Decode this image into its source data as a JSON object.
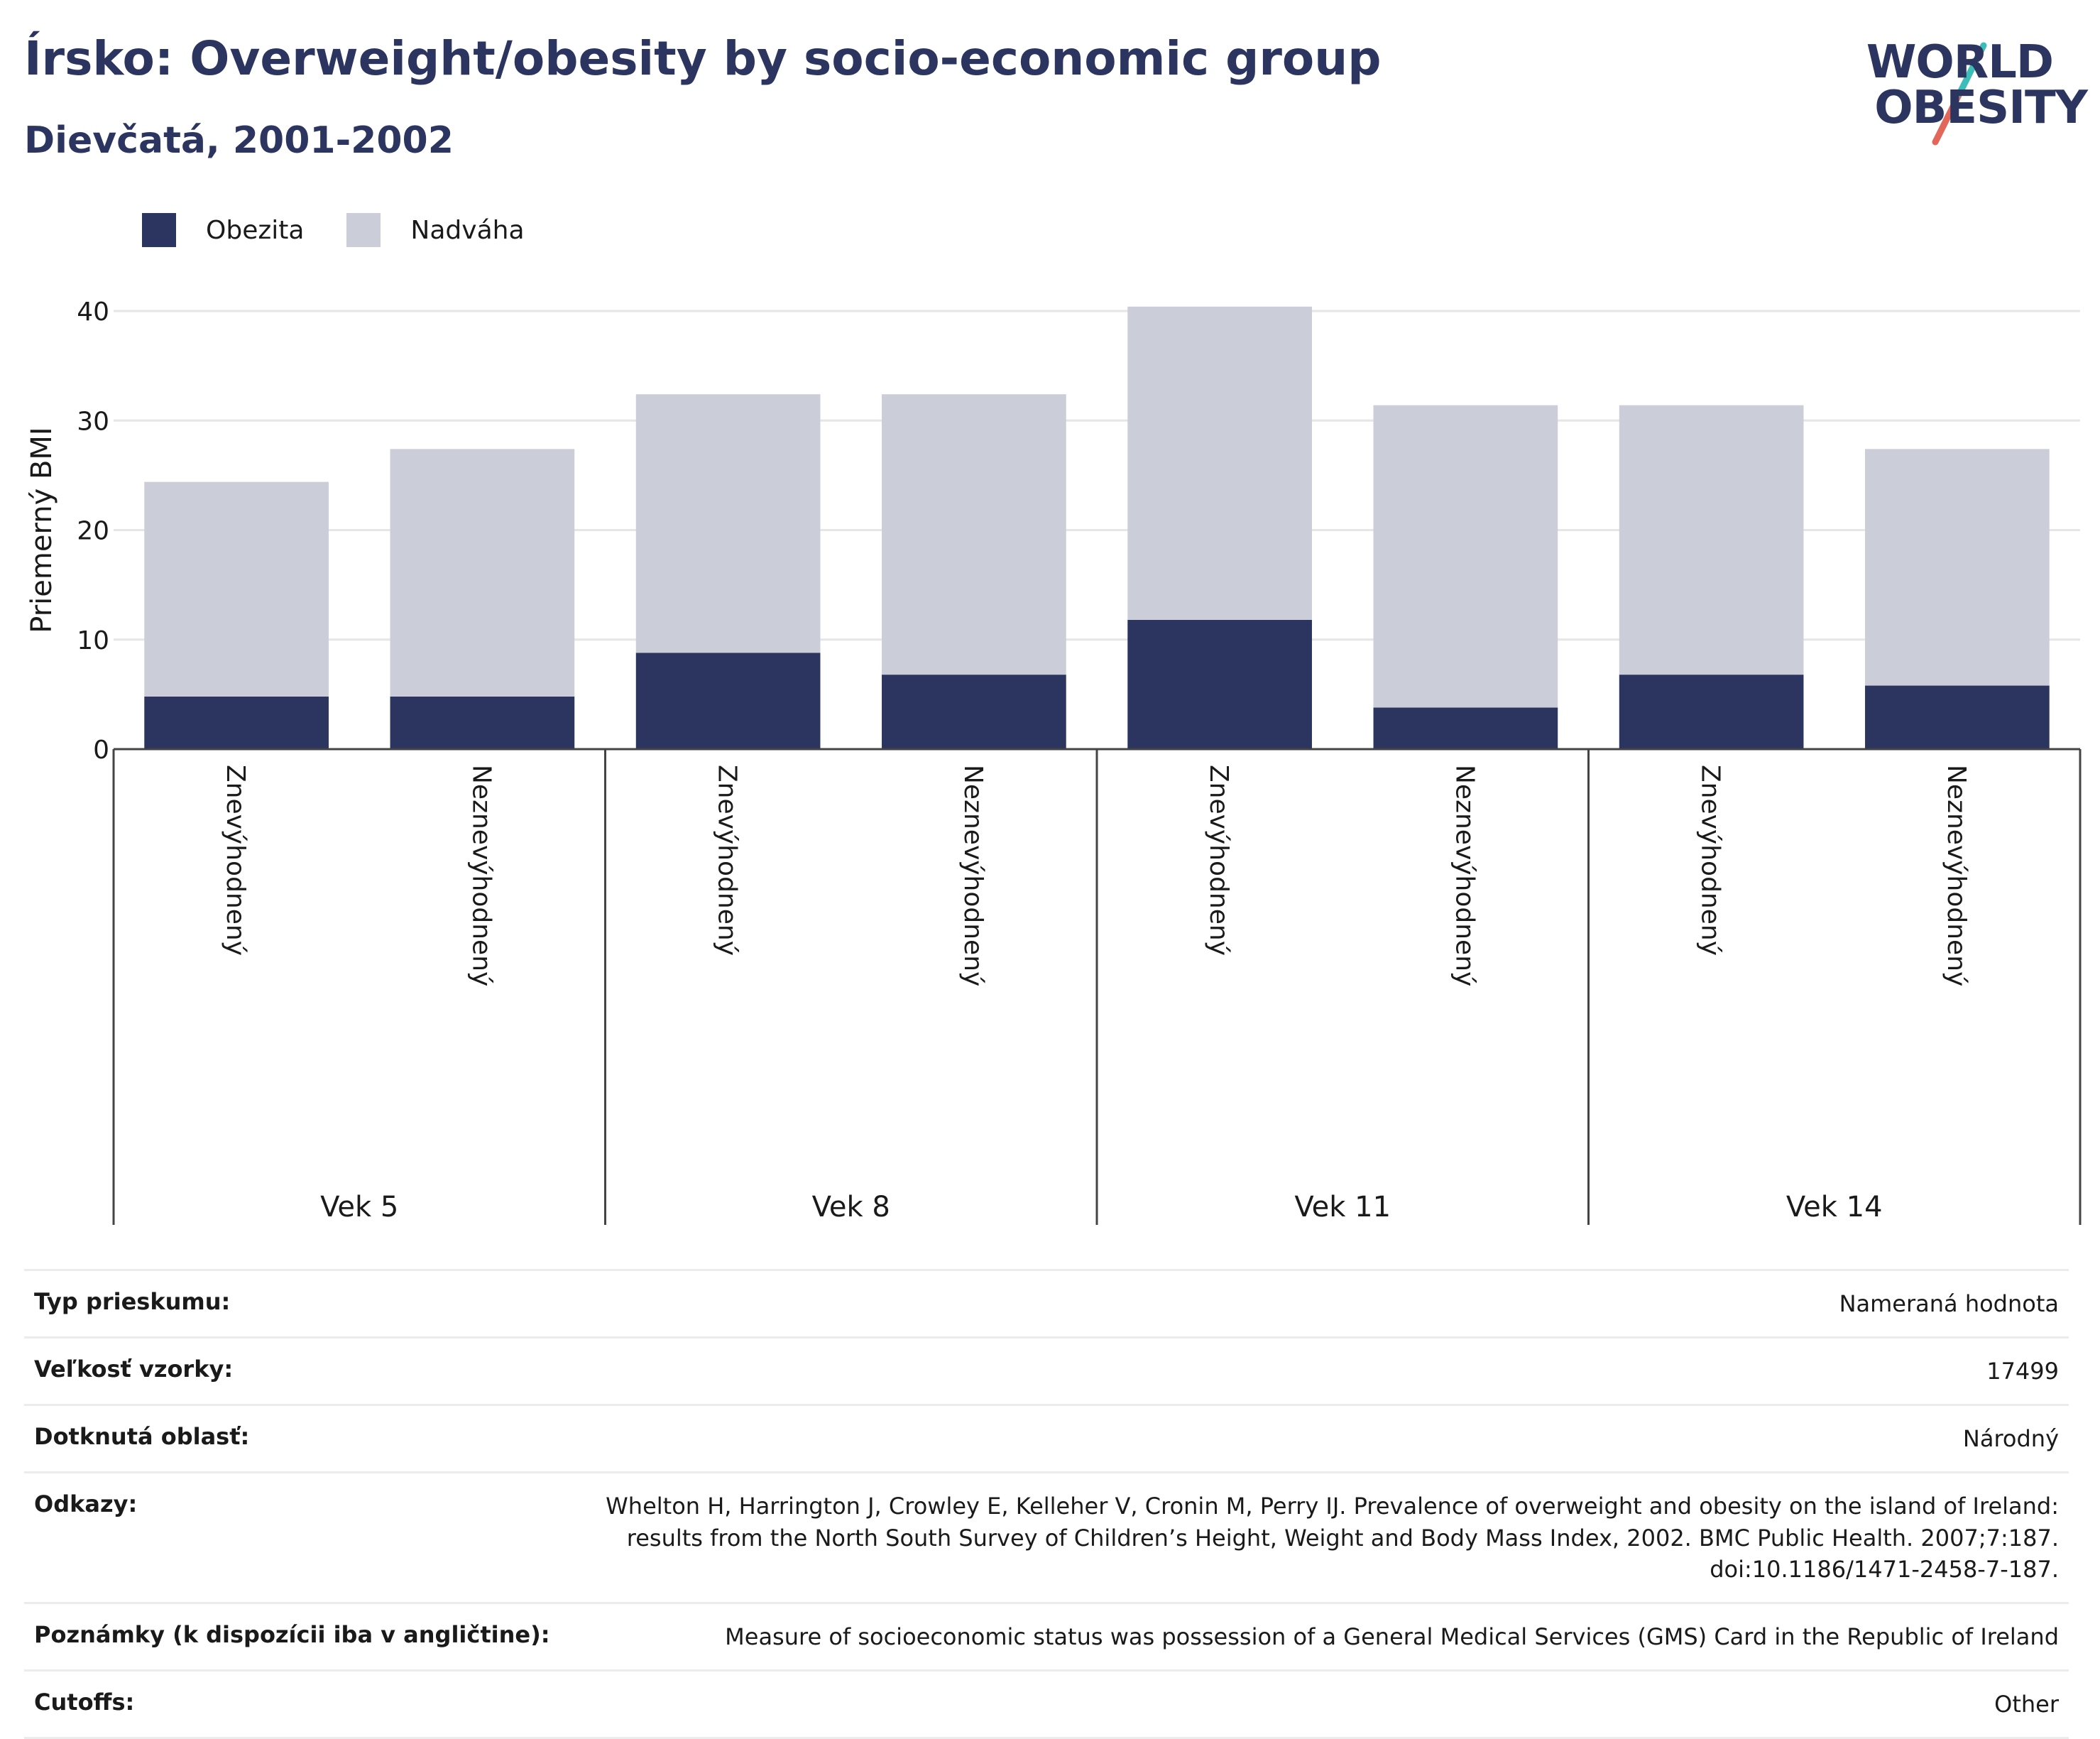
{
  "header": {
    "title": "Írsko: Overweight/obesity by socio-economic group",
    "subtitle": "Dievčatá, 2001-2002"
  },
  "logo": {
    "line1": "WORLD",
    "line2": "OBESITY"
  },
  "colors": {
    "obesity": "#2b3560",
    "overweight": "#cbcdd9",
    "accent_teal": "#3dbdb8",
    "accent_red": "#e2675a"
  },
  "chart_data": {
    "type": "bar",
    "stacked": true,
    "ylabel": "Priemerný BMI",
    "ylim": [
      0,
      40
    ],
    "yticks": [
      0,
      10,
      20,
      30,
      40
    ],
    "grid": true,
    "legend_position": "top-left",
    "groups": [
      "Vek 5",
      "Vek 8",
      "Vek 11",
      "Vek 14"
    ],
    "categories": [
      "Znevýhodnený",
      "Neznevýhodnený",
      "Znevýhodnený",
      "Neznevýhodnený",
      "Znevýhodnený",
      "Neznevýhodnený",
      "Znevýhodnený",
      "Neznevýhodnený"
    ],
    "series": [
      {
        "name": "Obezita",
        "values": [
          4.8,
          4.8,
          8.8,
          6.8,
          11.8,
          3.8,
          6.8,
          5.8
        ]
      },
      {
        "name": "Nadváha",
        "values": [
          19.6,
          22.6,
          23.6,
          25.6,
          28.6,
          27.6,
          24.6,
          21.6
        ]
      }
    ]
  },
  "meta": [
    {
      "key": "Typ prieskumu:",
      "value": "Nameraná hodnota"
    },
    {
      "key": "Veľkosť vzorky:",
      "value": "17499"
    },
    {
      "key": "Dotknutá oblasť:",
      "value": "Národný"
    },
    {
      "key": "Odkazy:",
      "value": "Whelton H, Harrington J, Crowley E, Kelleher V, Cronin M, Perry IJ. Prevalence of overweight and obesity on the island of Ireland: results from the North South Survey of Children’s Height, Weight and Body Mass Index, 2002. BMC Public Health. 2007;7:187. doi:10.1186/1471-2458-7-187."
    },
    {
      "key": "Poznámky (k dispozícii iba v angličtine):",
      "value": "Measure of socioeconomic status was possession of a General Medical Services (GMS) Card in the Republic of Ireland"
    },
    {
      "key": "Cutoffs:",
      "value": "Other"
    }
  ]
}
